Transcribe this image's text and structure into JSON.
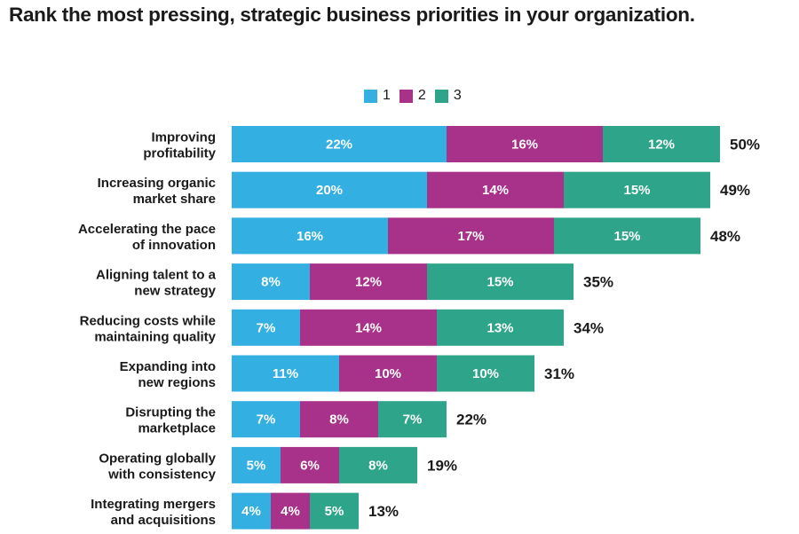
{
  "title": "Rank the most pressing, strategic business priorities in your organization.",
  "legend": [
    {
      "label": "1",
      "color": "#33afe2"
    },
    {
      "label": "2",
      "color": "#a8318a"
    },
    {
      "label": "3",
      "color": "#2ea58a"
    }
  ],
  "chart_data": {
    "type": "bar",
    "orientation": "horizontal",
    "stacked": true,
    "categories": [
      [
        "Improving",
        "profitability"
      ],
      [
        "Increasing organic",
        "market share"
      ],
      [
        "Accelerating the pace",
        "of innovation"
      ],
      [
        "Aligning talent to a",
        "new strategy"
      ],
      [
        "Reducing costs while",
        "maintaining quality"
      ],
      [
        "Expanding into",
        "new regions"
      ],
      [
        "Disrupting the",
        "marketplace"
      ],
      [
        "Operating globally",
        "with consistency"
      ],
      [
        "Integrating mergers",
        "and acquisitions"
      ]
    ],
    "series": [
      {
        "name": "1",
        "values": [
          22,
          20,
          16,
          8,
          7,
          11,
          7,
          5,
          4
        ],
        "labels": [
          "22%",
          "20%",
          "16%",
          "8%",
          "7%",
          "11%",
          "7%",
          "5%",
          "4%"
        ]
      },
      {
        "name": "2",
        "values": [
          16,
          14,
          17,
          12,
          14,
          10,
          8,
          6,
          4
        ],
        "labels": [
          "16%",
          "14%",
          "17%",
          "12%",
          "14%",
          "10%",
          "8%",
          "6%",
          "4%"
        ]
      },
      {
        "name": "3",
        "values": [
          12,
          15,
          15,
          15,
          13,
          10,
          7,
          8,
          5
        ],
        "labels": [
          "12%",
          "15%",
          "15%",
          "15%",
          "13%",
          "10%",
          "7%",
          "8%",
          "5%"
        ]
      }
    ],
    "totals": [
      "50%",
      "49%",
      "48%",
      "35%",
      "34%",
      "31%",
      "22%",
      "19%",
      "13%"
    ],
    "legend_position": "top"
  }
}
